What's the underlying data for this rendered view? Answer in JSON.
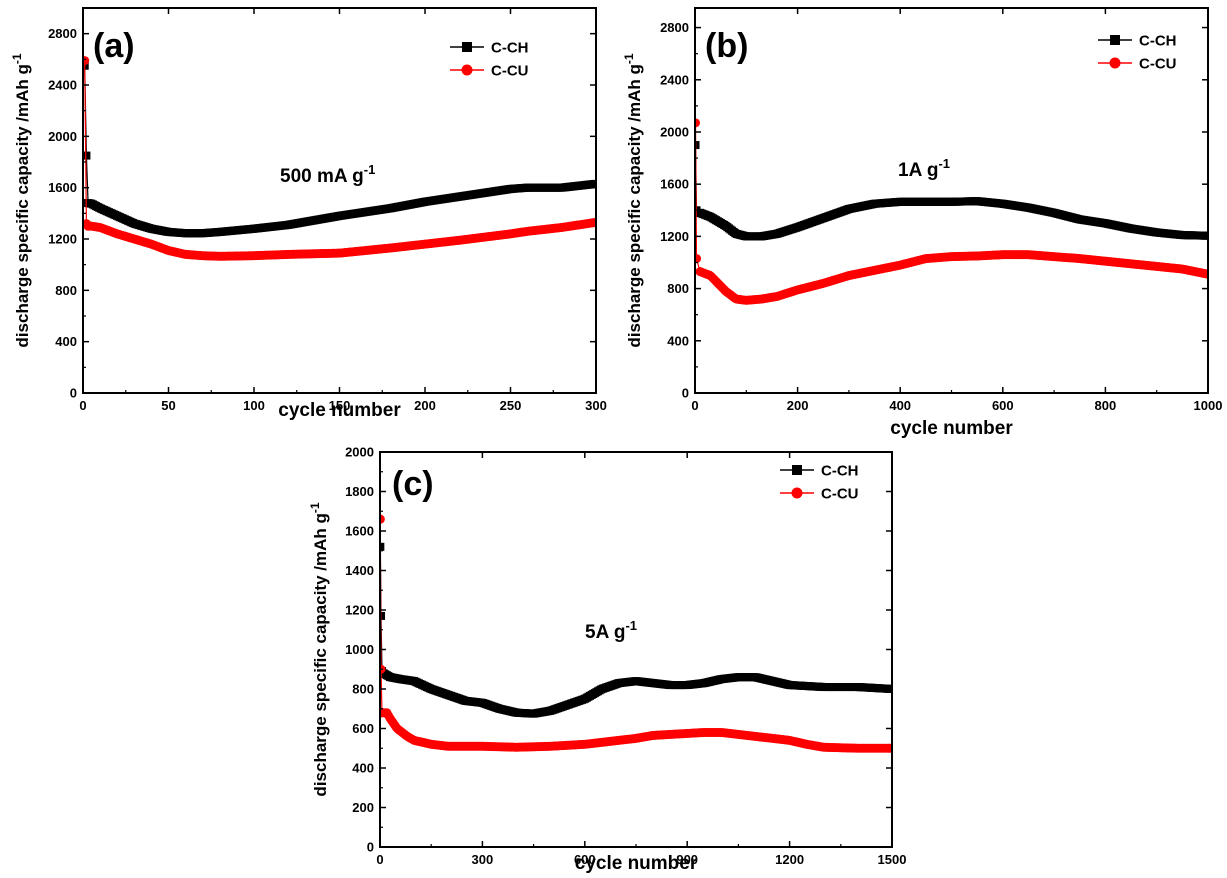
{
  "chart_data": [
    {
      "type": "line",
      "panel_label": "(a)",
      "annotation": "500 mA g",
      "annotation_sup": "-1",
      "xlabel": "cycle number",
      "ylabel": "discharge specific capacity /mAh g",
      "ylabel_sup": "-1",
      "xlim": [
        0,
        300
      ],
      "ylim": [
        0,
        3000
      ],
      "xticks": [
        0,
        50,
        100,
        150,
        200,
        250,
        300
      ],
      "yticks": [
        0,
        400,
        800,
        1200,
        1600,
        2000,
        2400,
        2800
      ],
      "grid": false,
      "legend_position": "top-right",
      "series": [
        {
          "name": "C-CH",
          "color": "#000000",
          "marker": "square",
          "x": [
            1,
            2,
            3,
            5,
            10,
            20,
            30,
            40,
            50,
            60,
            70,
            80,
            100,
            120,
            150,
            180,
            200,
            220,
            250,
            260,
            280,
            300
          ],
          "y": [
            2550,
            1850,
            1480,
            1475,
            1440,
            1380,
            1320,
            1280,
            1255,
            1245,
            1245,
            1255,
            1280,
            1310,
            1380,
            1440,
            1490,
            1530,
            1590,
            1600,
            1600,
            1630
          ]
        },
        {
          "name": "C-CU",
          "color": "#ff0000",
          "marker": "circle",
          "x": [
            1,
            2,
            3,
            5,
            10,
            20,
            30,
            40,
            50,
            60,
            70,
            80,
            100,
            120,
            150,
            180,
            200,
            220,
            250,
            260,
            280,
            300
          ],
          "y": [
            2590,
            1320,
            1300,
            1300,
            1290,
            1240,
            1200,
            1160,
            1110,
            1080,
            1070,
            1065,
            1070,
            1080,
            1090,
            1130,
            1160,
            1190,
            1240,
            1260,
            1290,
            1330
          ]
        }
      ]
    },
    {
      "type": "line",
      "panel_label": "(b)",
      "annotation": "1A g",
      "annotation_sup": "-1",
      "xlabel": "cycle number",
      "ylabel": "discharge specific capacity /mAh g",
      "ylabel_sup": "-1",
      "xlim": [
        0,
        1000
      ],
      "ylim": [
        0,
        2950
      ],
      "xticks": [
        0,
        200,
        400,
        600,
        800,
        1000
      ],
      "yticks": [
        0,
        400,
        800,
        1200,
        1600,
        2000,
        2400,
        2800
      ],
      "grid": false,
      "legend_position": "top-right",
      "series": [
        {
          "name": "C-CH",
          "color": "#000000",
          "marker": "square",
          "x": [
            1,
            3,
            10,
            30,
            60,
            80,
            100,
            130,
            160,
            200,
            250,
            300,
            350,
            400,
            450,
            500,
            550,
            600,
            650,
            700,
            750,
            800,
            850,
            900,
            950,
            1000
          ],
          "y": [
            1900,
            1400,
            1380,
            1350,
            1280,
            1220,
            1200,
            1200,
            1220,
            1270,
            1340,
            1410,
            1450,
            1465,
            1465,
            1465,
            1470,
            1450,
            1420,
            1380,
            1330,
            1300,
            1260,
            1230,
            1210,
            1205
          ]
        },
        {
          "name": "C-CU",
          "color": "#ff0000",
          "marker": "circle",
          "x": [
            1,
            3,
            10,
            30,
            60,
            80,
            100,
            130,
            160,
            200,
            250,
            300,
            350,
            400,
            450,
            500,
            550,
            600,
            650,
            700,
            750,
            800,
            850,
            900,
            950,
            1000
          ],
          "y": [
            2070,
            1030,
            930,
            900,
            780,
            720,
            710,
            720,
            740,
            790,
            840,
            900,
            940,
            980,
            1030,
            1045,
            1050,
            1060,
            1060,
            1045,
            1030,
            1010,
            990,
            970,
            950,
            910
          ]
        }
      ]
    },
    {
      "type": "line",
      "panel_label": "(c)",
      "annotation": "5A g",
      "annotation_sup": "-1",
      "xlabel": "cycle number",
      "ylabel": "discharge specific capacity /mAh g",
      "ylabel_sup": "-1",
      "xlim": [
        0,
        1500
      ],
      "ylim": [
        0,
        2000
      ],
      "xticks": [
        0,
        300,
        600,
        900,
        1200,
        1500
      ],
      "yticks": [
        0,
        200,
        400,
        600,
        800,
        1000,
        1200,
        1400,
        1600,
        1800,
        2000
      ],
      "grid": false,
      "legend_position": "top-right",
      "series": [
        {
          "name": "C-CH",
          "color": "#000000",
          "marker": "square",
          "x": [
            1,
            3,
            6,
            10,
            30,
            60,
            100,
            150,
            200,
            250,
            300,
            350,
            400,
            450,
            500,
            550,
            600,
            650,
            700,
            750,
            800,
            850,
            900,
            950,
            1000,
            1050,
            1100,
            1150,
            1200,
            1250,
            1300,
            1350,
            1400,
            1450,
            1500
          ],
          "y": [
            1520,
            1170,
            890,
            880,
            860,
            850,
            840,
            800,
            770,
            740,
            730,
            700,
            680,
            675,
            690,
            720,
            750,
            800,
            830,
            840,
            830,
            820,
            820,
            830,
            850,
            860,
            860,
            840,
            820,
            815,
            810,
            810,
            810,
            805,
            800
          ]
        },
        {
          "name": "C-CU",
          "color": "#ff0000",
          "marker": "circle",
          "x": [
            1,
            3,
            6,
            10,
            20,
            30,
            50,
            80,
            100,
            150,
            200,
            300,
            400,
            500,
            600,
            700,
            750,
            800,
            850,
            900,
            950,
            1000,
            1050,
            1100,
            1150,
            1200,
            1250,
            1300,
            1400,
            1500
          ],
          "y": [
            1660,
            900,
            680,
            680,
            680,
            650,
            600,
            560,
            540,
            520,
            510,
            510,
            505,
            510,
            520,
            540,
            550,
            565,
            570,
            575,
            580,
            580,
            570,
            560,
            550,
            540,
            520,
            505,
            500,
            500
          ]
        }
      ]
    }
  ]
}
